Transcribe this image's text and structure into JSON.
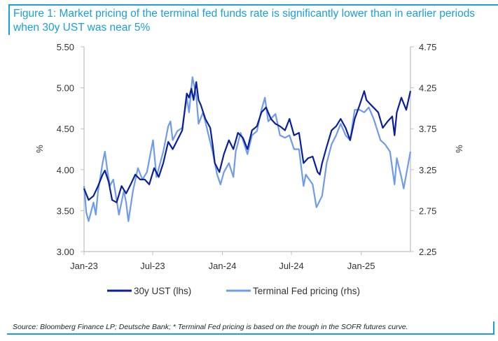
{
  "title": "Figure 1: Market pricing of the terminal fed funds rate is significantly lower than in earlier periods when 30y UST was near 5%",
  "source": "Source: Bloomberg Finance LP; Deutsche Bank; * Terminal Fed pricing is based on the trough in the SOFR futures curve.",
  "chart_data": {
    "type": "line",
    "title": "Figure 1: Market pricing of the terminal fed funds rate is significantly lower than in earlier periods when 30y UST was near 5%",
    "xlabel": "",
    "ylabel": "%",
    "y2label": "%",
    "xlim": [
      "2023-01-01",
      "2025-05-11"
    ],
    "ylim": [
      3.0,
      5.5
    ],
    "y2lim": [
      2.25,
      4.75
    ],
    "x_ticks": [
      {
        "date": "2023-01-01",
        "label": "Jan-23"
      },
      {
        "date": "2023-07-01",
        "label": "Jul-23"
      },
      {
        "date": "2024-01-01",
        "label": "Jan-24"
      },
      {
        "date": "2024-07-01",
        "label": "Jul-24"
      },
      {
        "date": "2025-01-01",
        "label": "Jan-25"
      }
    ],
    "y_ticks": [
      "3.00",
      "3.50",
      "4.00",
      "4.50",
      "5.00",
      "5.50"
    ],
    "y2_ticks": [
      "2.25",
      "2.75",
      "3.25",
      "3.75",
      "4.25",
      "4.75"
    ],
    "grid": false,
    "legend_position": "bottom",
    "series": [
      {
        "name": "30y UST (lhs)",
        "axis": "left",
        "color": "#0a1f9a",
        "points": [
          [
            "2023-01-01",
            3.77
          ],
          [
            "2023-01-13",
            3.63
          ],
          [
            "2023-01-26",
            3.68
          ],
          [
            "2023-02-07",
            3.8
          ],
          [
            "2023-02-19",
            3.94
          ],
          [
            "2023-02-25",
            3.99
          ],
          [
            "2023-03-07",
            3.85
          ],
          [
            "2023-03-16",
            3.63
          ],
          [
            "2023-03-28",
            3.6
          ],
          [
            "2023-04-10",
            3.8
          ],
          [
            "2023-04-22",
            3.71
          ],
          [
            "2023-05-04",
            3.82
          ],
          [
            "2023-05-16",
            3.94
          ],
          [
            "2023-05-29",
            3.88
          ],
          [
            "2023-06-10",
            3.88
          ],
          [
            "2023-06-22",
            3.82
          ],
          [
            "2023-07-05",
            4.02
          ],
          [
            "2023-07-17",
            3.91
          ],
          [
            "2023-07-29",
            4.08
          ],
          [
            "2023-08-11",
            4.34
          ],
          [
            "2023-08-23",
            4.25
          ],
          [
            "2023-09-04",
            4.36
          ],
          [
            "2023-09-17",
            4.48
          ],
          [
            "2023-09-29",
            4.93
          ],
          [
            "2023-10-05",
            4.88
          ],
          [
            "2023-10-11",
            4.99
          ],
          [
            "2023-10-17",
            4.85
          ],
          [
            "2023-10-24",
            5.07
          ],
          [
            "2023-10-30",
            4.85
          ],
          [
            "2023-11-05",
            4.79
          ],
          [
            "2023-11-17",
            4.62
          ],
          [
            "2023-11-30",
            4.51
          ],
          [
            "2023-12-06",
            4.31
          ],
          [
            "2023-12-12",
            4.08
          ],
          [
            "2023-12-24",
            3.97
          ],
          [
            "2024-01-05",
            4.19
          ],
          [
            "2024-01-18",
            4.36
          ],
          [
            "2024-01-30",
            4.25
          ],
          [
            "2024-02-11",
            4.45
          ],
          [
            "2024-02-24",
            4.39
          ],
          [
            "2024-03-07",
            4.25
          ],
          [
            "2024-03-19",
            4.48
          ],
          [
            "2024-04-01",
            4.53
          ],
          [
            "2024-04-13",
            4.7
          ],
          [
            "2024-04-25",
            4.76
          ],
          [
            "2024-05-08",
            4.62
          ],
          [
            "2024-05-20",
            4.56
          ],
          [
            "2024-06-01",
            4.53
          ],
          [
            "2024-06-14",
            4.48
          ],
          [
            "2024-06-26",
            4.62
          ],
          [
            "2024-07-08",
            4.42
          ],
          [
            "2024-07-21",
            4.45
          ],
          [
            "2024-08-02",
            4.08
          ],
          [
            "2024-08-14",
            4.14
          ],
          [
            "2024-08-26",
            4.16
          ],
          [
            "2024-09-08",
            3.97
          ],
          [
            "2024-09-14",
            3.94
          ],
          [
            "2024-09-20",
            4.08
          ],
          [
            "2024-10-02",
            4.28
          ],
          [
            "2024-10-15",
            4.48
          ],
          [
            "2024-10-27",
            4.53
          ],
          [
            "2024-11-08",
            4.62
          ],
          [
            "2024-11-21",
            4.51
          ],
          [
            "2024-12-03",
            4.36
          ],
          [
            "2024-12-15",
            4.62
          ],
          [
            "2024-12-28",
            4.79
          ],
          [
            "2025-01-09",
            4.96
          ],
          [
            "2025-01-15",
            4.85
          ],
          [
            "2025-01-27",
            4.79
          ],
          [
            "2025-02-15",
            4.7
          ],
          [
            "2025-02-27",
            4.51
          ],
          [
            "2025-03-12",
            4.59
          ],
          [
            "2025-03-24",
            4.65
          ],
          [
            "2025-03-30",
            4.42
          ],
          [
            "2025-04-05",
            4.7
          ],
          [
            "2025-04-17",
            4.88
          ],
          [
            "2025-04-30",
            4.73
          ],
          [
            "2025-05-11",
            4.96
          ]
        ]
      },
      {
        "name": "Terminal Fed pricing (rhs)",
        "axis": "right",
        "color": "#6f9bec",
        "points": [
          [
            "2023-01-01",
            3.05
          ],
          [
            "2023-01-07",
            2.73
          ],
          [
            "2023-01-13",
            2.62
          ],
          [
            "2023-01-26",
            2.85
          ],
          [
            "2023-02-01",
            2.7
          ],
          [
            "2023-02-07",
            2.99
          ],
          [
            "2023-02-19",
            3.33
          ],
          [
            "2023-02-25",
            3.47
          ],
          [
            "2023-03-04",
            3.22
          ],
          [
            "2023-03-10",
            3.05
          ],
          [
            "2023-03-19",
            3.13
          ],
          [
            "2023-03-28",
            2.88
          ],
          [
            "2023-04-03",
            2.7
          ],
          [
            "2023-04-16",
            2.99
          ],
          [
            "2023-04-22",
            2.85
          ],
          [
            "2023-04-28",
            2.62
          ],
          [
            "2023-05-10",
            2.99
          ],
          [
            "2023-05-23",
            3.27
          ],
          [
            "2023-06-04",
            3.13
          ],
          [
            "2023-06-16",
            3.22
          ],
          [
            "2023-07-02",
            3.61
          ],
          [
            "2023-07-11",
            3.16
          ],
          [
            "2023-07-29",
            3.47
          ],
          [
            "2023-08-11",
            3.78
          ],
          [
            "2023-08-17",
            3.84
          ],
          [
            "2023-08-23",
            3.61
          ],
          [
            "2023-09-04",
            3.72
          ],
          [
            "2023-09-17",
            3.76
          ],
          [
            "2023-09-29",
            4.13
          ],
          [
            "2023-10-05",
            3.95
          ],
          [
            "2023-10-14",
            4.38
          ],
          [
            "2023-10-24",
            4.15
          ],
          [
            "2023-10-30",
            3.81
          ],
          [
            "2023-11-11",
            3.95
          ],
          [
            "2023-11-23",
            3.72
          ],
          [
            "2023-12-06",
            3.47
          ],
          [
            "2023-12-18",
            3.19
          ],
          [
            "2023-12-27",
            3.07
          ],
          [
            "2024-01-05",
            3.22
          ],
          [
            "2024-01-18",
            3.33
          ],
          [
            "2024-01-30",
            3.16
          ],
          [
            "2024-02-05",
            3.47
          ],
          [
            "2024-02-18",
            3.7
          ],
          [
            "2024-03-07",
            3.44
          ],
          [
            "2024-03-19",
            3.67
          ],
          [
            "2024-04-01",
            3.72
          ],
          [
            "2024-04-13",
            3.98
          ],
          [
            "2024-04-22",
            4.13
          ],
          [
            "2024-05-01",
            3.84
          ],
          [
            "2024-05-20",
            3.93
          ],
          [
            "2024-06-01",
            3.67
          ],
          [
            "2024-06-14",
            3.64
          ],
          [
            "2024-06-26",
            3.67
          ],
          [
            "2024-07-08",
            3.5
          ],
          [
            "2024-07-21",
            3.5
          ],
          [
            "2024-08-02",
            3.05
          ],
          [
            "2024-08-08",
            3.19
          ],
          [
            "2024-08-26",
            3.07
          ],
          [
            "2024-09-05",
            2.79
          ],
          [
            "2024-09-20",
            2.93
          ],
          [
            "2024-10-02",
            3.33
          ],
          [
            "2024-10-15",
            3.56
          ],
          [
            "2024-10-27",
            3.67
          ],
          [
            "2024-11-08",
            3.81
          ],
          [
            "2024-11-21",
            3.67
          ],
          [
            "2024-12-03",
            3.61
          ],
          [
            "2024-12-15",
            3.98
          ],
          [
            "2024-12-28",
            3.98
          ],
          [
            "2025-01-09",
            3.95
          ],
          [
            "2025-01-21",
            4.01
          ],
          [
            "2025-02-03",
            3.87
          ],
          [
            "2025-02-21",
            3.61
          ],
          [
            "2025-03-05",
            3.56
          ],
          [
            "2025-03-18",
            3.47
          ],
          [
            "2025-03-30",
            3.07
          ],
          [
            "2025-04-05",
            3.39
          ],
          [
            "2025-04-17",
            3.16
          ],
          [
            "2025-04-23",
            3.02
          ],
          [
            "2025-04-30",
            3.19
          ],
          [
            "2025-05-11",
            3.47
          ]
        ]
      }
    ]
  }
}
